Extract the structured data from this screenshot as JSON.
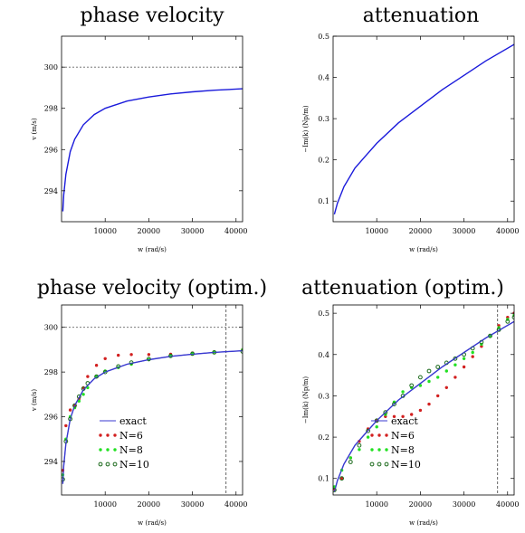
{
  "chart_data": [
    {
      "type": "line",
      "title": "phase velocity",
      "xlabel": "w (rad/s)",
      "ylabel": "v (m/s)",
      "xlim": [
        0,
        41500
      ],
      "ylim": [
        292.5,
        301.5
      ],
      "xticks": [
        "10000",
        "20000",
        "30000",
        "40000"
      ],
      "xtick_values": [
        10000,
        20000,
        30000,
        40000
      ],
      "yticks": [
        "294",
        "296",
        "298",
        "300"
      ],
      "ytick_values": [
        294,
        296,
        298,
        300
      ],
      "hline": 300,
      "colors": {
        "exact": "#1a1adb"
      },
      "series": [
        {
          "style": "line",
          "color": "#1a1adb",
          "x": [
            300,
            500,
            1000,
            2000,
            3000,
            5000,
            7500,
            10000,
            15000,
            20000,
            25000,
            30000,
            35000,
            41500
          ],
          "y": [
            293.0,
            293.8,
            294.8,
            295.9,
            296.5,
            297.2,
            297.7,
            298.0,
            298.35,
            298.55,
            298.7,
            298.8,
            298.88,
            298.95
          ]
        }
      ]
    },
    {
      "type": "line",
      "title": "attenuation",
      "xlabel": "w (rad/s)",
      "ylabel": "−Im(k) (Np/m)",
      "xlim": [
        0,
        41500
      ],
      "ylim": [
        0.05,
        0.5
      ],
      "xticks": [
        "10000",
        "20000",
        "30000",
        "40000"
      ],
      "xtick_values": [
        10000,
        20000,
        30000,
        40000
      ],
      "yticks": [
        "0.1",
        "0.2",
        "0.3",
        "0.4",
        "0.5"
      ],
      "ytick_values": [
        0.1,
        0.2,
        0.3,
        0.4,
        0.5
      ],
      "colors": {
        "exact": "#1a1adb"
      },
      "series": [
        {
          "style": "line",
          "color": "#1a1adb",
          "x": [
            300,
            1000,
            2500,
            5000,
            7500,
            10000,
            15000,
            20000,
            25000,
            30000,
            35000,
            41500
          ],
          "y": [
            0.068,
            0.095,
            0.135,
            0.18,
            0.21,
            0.24,
            0.29,
            0.33,
            0.37,
            0.405,
            0.44,
            0.48
          ]
        }
      ]
    },
    {
      "type": "line",
      "title": "phase velocity (optim.)",
      "xlabel": "w (rad/s)",
      "ylabel": "v (m/s)",
      "xlim": [
        0,
        41500
      ],
      "ylim": [
        292.5,
        301.0
      ],
      "xticks": [
        "10000",
        "20000",
        "30000",
        "40000"
      ],
      "xtick_values": [
        10000,
        20000,
        30000,
        40000
      ],
      "yticks": [
        "294",
        "296",
        "298",
        "300"
      ],
      "ytick_values": [
        294,
        296,
        298,
        300
      ],
      "hline": 300,
      "vline": 37700,
      "colors": {
        "exact": "#3a3ad0",
        "N=6": "#d22020",
        "N=8": "#22e022",
        "N=10": "#1c6a1c"
      },
      "series": [
        {
          "name": "exact",
          "style": "line",
          "color": "#3a3ad0",
          "x": [
            300,
            500,
            1000,
            2000,
            3000,
            5000,
            7500,
            10000,
            15000,
            20000,
            25000,
            30000,
            35000,
            41500
          ],
          "y": [
            293.0,
            293.8,
            294.8,
            295.9,
            296.5,
            297.2,
            297.7,
            298.0,
            298.35,
            298.55,
            298.7,
            298.8,
            298.88,
            298.95
          ]
        },
        {
          "name": "N=6",
          "style": "dots",
          "color": "#d22020",
          "x": [
            300,
            1000,
            2000,
            3000,
            4000,
            5000,
            6000,
            8000,
            10000,
            13000,
            16000,
            20000,
            25000,
            30000,
            35000,
            41500
          ],
          "y": [
            293.6,
            295.6,
            296.3,
            296.5,
            296.8,
            297.3,
            297.8,
            298.3,
            298.6,
            298.75,
            298.78,
            298.78,
            298.8,
            298.85,
            298.9,
            299.0
          ]
        },
        {
          "name": "N=8",
          "style": "dots",
          "color": "#22e022",
          "x": [
            300,
            1000,
            2000,
            3000,
            4000,
            5000,
            6000,
            8000,
            10000,
            13000,
            16000,
            20000,
            25000,
            30000,
            35000,
            41500
          ],
          "y": [
            293.4,
            295.0,
            296.0,
            296.4,
            296.7,
            297.0,
            297.3,
            297.8,
            298.05,
            298.2,
            298.35,
            298.55,
            298.72,
            298.82,
            298.9,
            299.0
          ]
        },
        {
          "name": "N=10",
          "style": "rings",
          "color": "#1c6a1c",
          "x": [
            300,
            1000,
            2000,
            3000,
            4000,
            5000,
            6000,
            8000,
            10000,
            13000,
            16000,
            20000,
            25000,
            30000,
            35000,
            41500
          ],
          "y": [
            293.2,
            294.9,
            295.9,
            296.5,
            296.9,
            297.25,
            297.5,
            297.8,
            298.0,
            298.25,
            298.42,
            298.58,
            298.72,
            298.82,
            298.88,
            298.92
          ]
        }
      ],
      "legend": {
        "placement": "lower-left",
        "entries": [
          "exact",
          "N=6",
          "N=8",
          "N=10"
        ]
      }
    },
    {
      "type": "line",
      "title": "attenuation (optim.)",
      "xlabel": "w (rad/s)",
      "ylabel": "−Im(k) (Np/m)",
      "xlim": [
        0,
        41500
      ],
      "ylim": [
        0.06,
        0.52
      ],
      "xticks": [
        "10000",
        "20000",
        "30000",
        "40000"
      ],
      "xtick_values": [
        10000,
        20000,
        30000,
        40000
      ],
      "yticks": [
        "0.1",
        "0.2",
        "0.3",
        "0.4",
        "0.5"
      ],
      "ytick_values": [
        0.1,
        0.2,
        0.3,
        0.4,
        0.5
      ],
      "vline": 37700,
      "colors": {
        "exact": "#3a3ad0",
        "N=6": "#d22020",
        "N=8": "#22e022",
        "N=10": "#1c6a1c"
      },
      "series": [
        {
          "name": "exact",
          "style": "line",
          "color": "#3a3ad0",
          "x": [
            300,
            1000,
            2500,
            5000,
            7500,
            10000,
            15000,
            20000,
            25000,
            30000,
            35000,
            41500
          ],
          "y": [
            0.068,
            0.095,
            0.135,
            0.18,
            0.21,
            0.24,
            0.29,
            0.33,
            0.37,
            0.405,
            0.44,
            0.48
          ]
        },
        {
          "name": "N=6",
          "style": "dots",
          "color": "#d22020",
          "x": [
            300,
            2000,
            4000,
            6000,
            8000,
            10000,
            12000,
            14000,
            16000,
            18000,
            20000,
            22000,
            24000,
            26000,
            28000,
            30000,
            32000,
            34000,
            36000,
            38000,
            40000,
            41500
          ],
          "y": [
            0.075,
            0.1,
            0.15,
            0.19,
            0.22,
            0.24,
            0.25,
            0.25,
            0.25,
            0.255,
            0.265,
            0.28,
            0.3,
            0.32,
            0.345,
            0.37,
            0.395,
            0.42,
            0.445,
            0.47,
            0.49,
            0.5
          ]
        },
        {
          "name": "N=8",
          "style": "dots",
          "color": "#22e022",
          "x": [
            300,
            2000,
            4000,
            6000,
            8000,
            10000,
            12000,
            14000,
            16000,
            18000,
            20000,
            22000,
            24000,
            26000,
            28000,
            30000,
            32000,
            34000,
            36000,
            38000,
            40000,
            41500
          ],
          "y": [
            0.08,
            0.12,
            0.15,
            0.17,
            0.2,
            0.225,
            0.255,
            0.285,
            0.31,
            0.32,
            0.325,
            0.335,
            0.345,
            0.36,
            0.375,
            0.39,
            0.405,
            0.425,
            0.445,
            0.465,
            0.485,
            0.495
          ]
        },
        {
          "name": "N=10",
          "style": "rings",
          "color": "#1c6a1c",
          "x": [
            300,
            2000,
            4000,
            6000,
            8000,
            10000,
            12000,
            14000,
            16000,
            18000,
            20000,
            22000,
            24000,
            26000,
            28000,
            30000,
            32000,
            34000,
            36000,
            38000,
            40000,
            41500
          ],
          "y": [
            0.072,
            0.1,
            0.14,
            0.18,
            0.215,
            0.24,
            0.26,
            0.28,
            0.3,
            0.325,
            0.345,
            0.36,
            0.37,
            0.38,
            0.39,
            0.4,
            0.415,
            0.43,
            0.445,
            0.46,
            0.48,
            0.49
          ]
        }
      ],
      "legend": {
        "placement": "lower-left",
        "entries": [
          "exact",
          "N=6",
          "N=8",
          "N=10"
        ]
      }
    }
  ]
}
